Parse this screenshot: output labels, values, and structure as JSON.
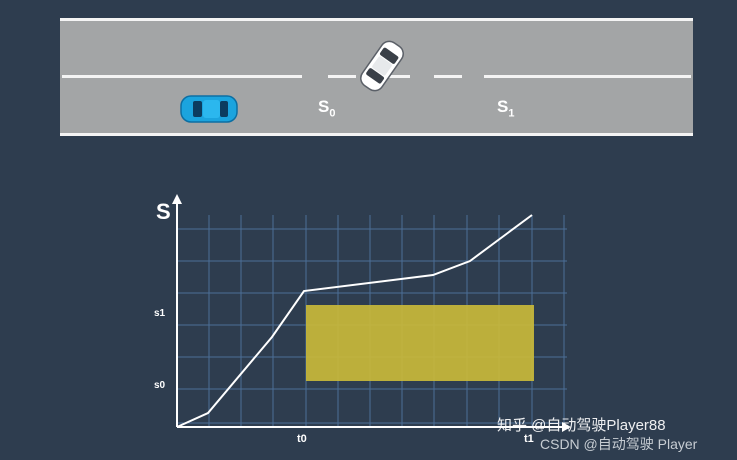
{
  "road": {
    "labels": {
      "s0": "S",
      "s0_sub": "0",
      "s1": "S",
      "s1_sub": "1"
    },
    "colors": {
      "road": "#a3a5a6",
      "lines": "#f4f4f4",
      "ego_car": "#1ba4de",
      "merge_car": "#ffffff"
    },
    "icons": {
      "ego": "blue-car-icon",
      "merging": "white-car-icon"
    }
  },
  "diagram": {
    "y_axis_label": "S",
    "y_ticks": [
      "s1",
      "s0"
    ],
    "x_ticks": [
      "t0",
      "t1"
    ],
    "colors": {
      "grid": "#4c6e97",
      "axis": "#ffffff",
      "curve": "#ffffff",
      "region": "#c9b83a"
    }
  },
  "watermark": {
    "zhihu": "知乎 @自动驾驶Player88",
    "csdn": "CSDN @自动驾驶 Player"
  }
}
